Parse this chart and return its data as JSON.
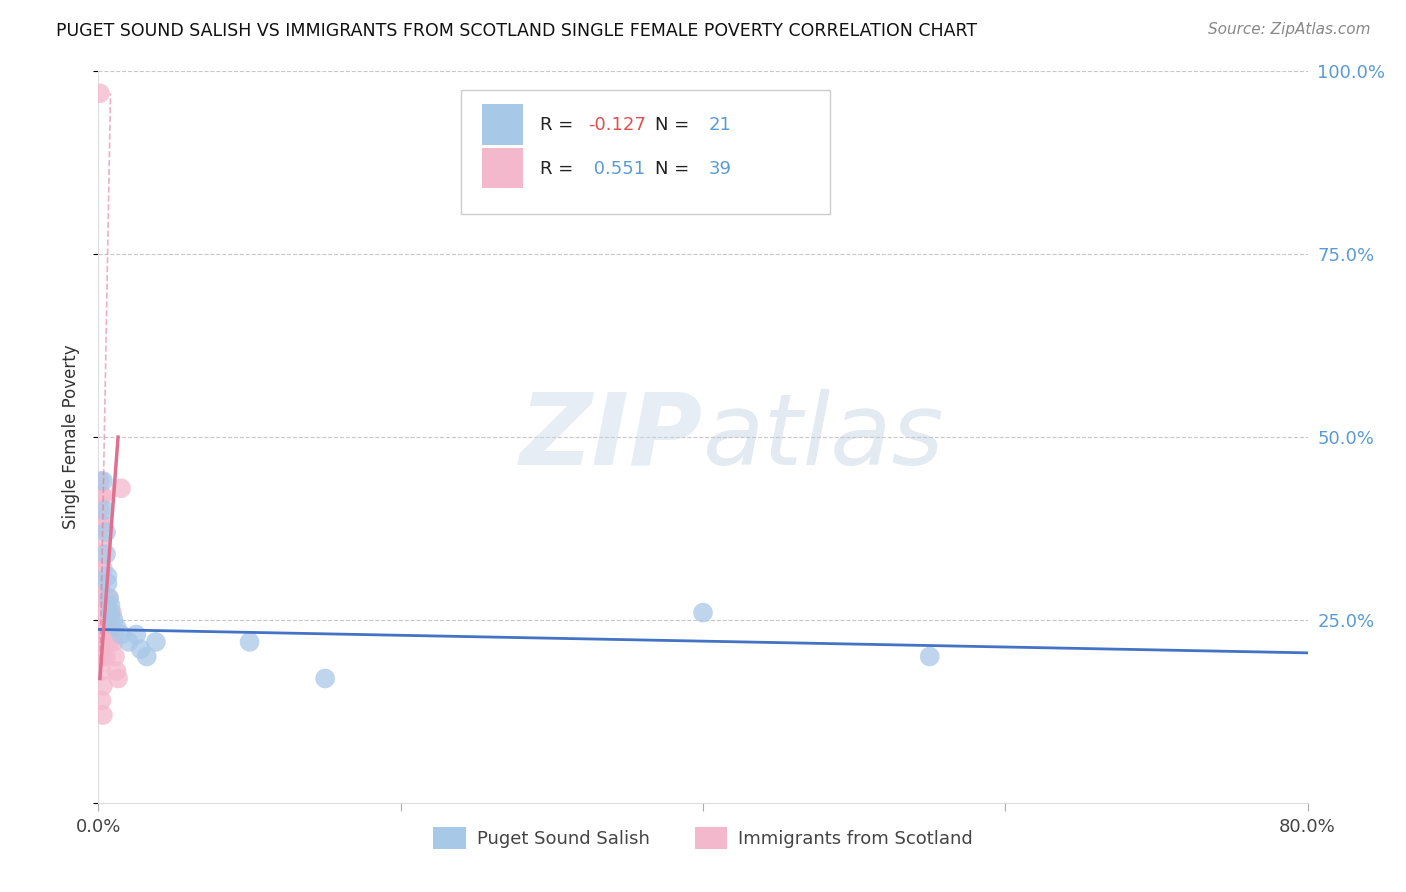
{
  "title": "PUGET SOUND SALISH VS IMMIGRANTS FROM SCOTLAND SINGLE FEMALE POVERTY CORRELATION CHART",
  "source": "Source: ZipAtlas.com",
  "ylabel": "Single Female Poverty",
  "xlim": [
    0.0,
    0.8
  ],
  "ylim": [
    0.0,
    1.0
  ],
  "legend1_label": "Puget Sound Salish",
  "legend2_label": "Immigrants from Scotland",
  "blue_color": "#a8c8e8",
  "pink_color": "#f4b8cc",
  "blue_line_color": "#4472c4",
  "pink_line_color": "#e07090",
  "R_blue": -0.127,
  "N_blue": 21,
  "R_pink": 0.551,
  "N_pink": 39,
  "blue_x": [
    0.003,
    0.004,
    0.005,
    0.005,
    0.006,
    0.006,
    0.007,
    0.008,
    0.008,
    0.01,
    0.012,
    0.015,
    0.02,
    0.025,
    0.028,
    0.032,
    0.038,
    0.1,
    0.15,
    0.4,
    0.55
  ],
  "blue_y": [
    0.44,
    0.4,
    0.37,
    0.34,
    0.31,
    0.3,
    0.28,
    0.27,
    0.26,
    0.25,
    0.24,
    0.23,
    0.22,
    0.23,
    0.21,
    0.2,
    0.22,
    0.22,
    0.17,
    0.26,
    0.2
  ],
  "pink_x": [
    0.001,
    0.001,
    0.001,
    0.001,
    0.001,
    0.001,
    0.001,
    0.001,
    0.002,
    0.002,
    0.002,
    0.002,
    0.002,
    0.002,
    0.002,
    0.002,
    0.003,
    0.003,
    0.003,
    0.003,
    0.003,
    0.003,
    0.003,
    0.003,
    0.004,
    0.004,
    0.005,
    0.005,
    0.006,
    0.007,
    0.007,
    0.008,
    0.009,
    0.01,
    0.011,
    0.012,
    0.013,
    0.015,
    0.001
  ],
  "pink_y": [
    0.2,
    0.22,
    0.24,
    0.28,
    0.32,
    0.36,
    0.4,
    0.44,
    0.14,
    0.18,
    0.22,
    0.26,
    0.3,
    0.34,
    0.38,
    0.42,
    0.12,
    0.16,
    0.2,
    0.24,
    0.28,
    0.32,
    0.38,
    0.42,
    0.22,
    0.28,
    0.2,
    0.26,
    0.24,
    0.22,
    0.28,
    0.24,
    0.26,
    0.22,
    0.2,
    0.18,
    0.17,
    0.43,
    0.97
  ],
  "watermark_zip": "ZIP",
  "watermark_atlas": "atlas",
  "background_color": "#ffffff",
  "grid_color": "#c8c8c8",
  "right_tick_color": "#5b9bd5"
}
